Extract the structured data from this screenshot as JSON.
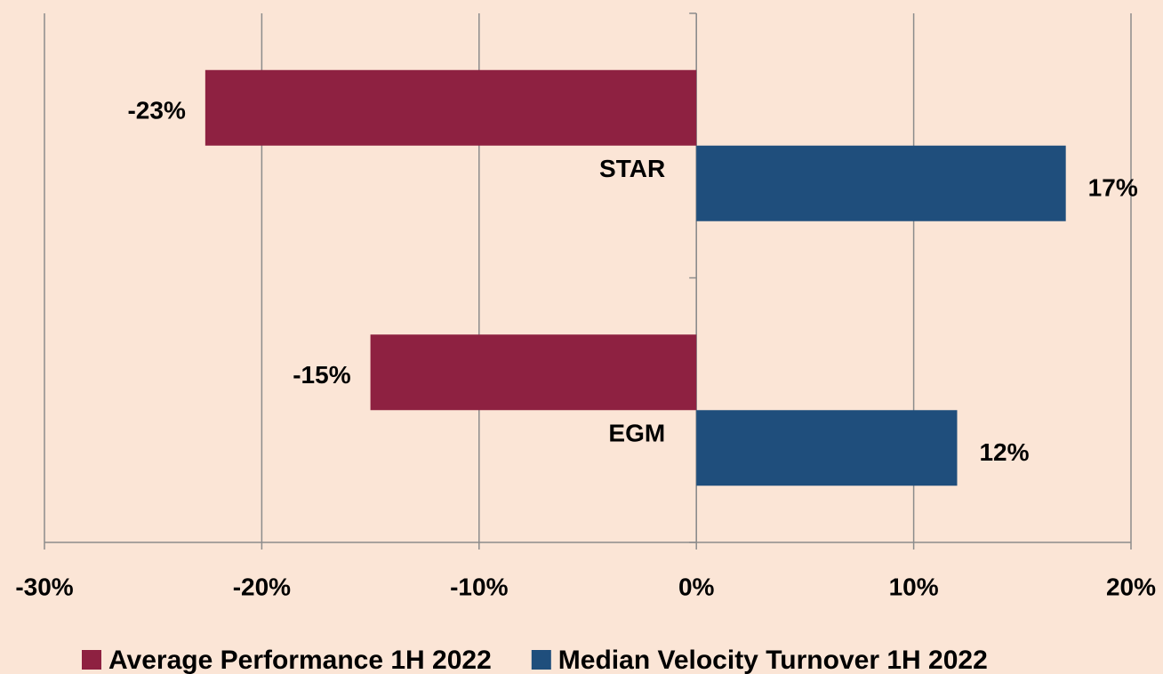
{
  "chart_data": {
    "type": "hbar",
    "categories": [
      "STAR",
      "EGM"
    ],
    "series": [
      {
        "name": "Average Performance 1H 2022",
        "color": "#8e2141",
        "values": [
          -22.6,
          -15
        ],
        "value_labels": [
          "-23%",
          "-15%"
        ]
      },
      {
        "name": "Median Velocity Turnover 1H 2022",
        "color": "#1f4e7c",
        "values": [
          17,
          12
        ],
        "value_labels": [
          "17%",
          "12%"
        ]
      }
    ],
    "xlim": [
      -30,
      20
    ],
    "xticks": [
      {
        "value": -30,
        "label": "-30%"
      },
      {
        "value": -20,
        "label": "-20%"
      },
      {
        "value": -10,
        "label": "-10%"
      },
      {
        "value": 0,
        "label": "0%"
      },
      {
        "value": 10,
        "label": "10%"
      },
      {
        "value": 20,
        "label": "20%"
      }
    ],
    "grid": true,
    "legend": "bottom"
  }
}
